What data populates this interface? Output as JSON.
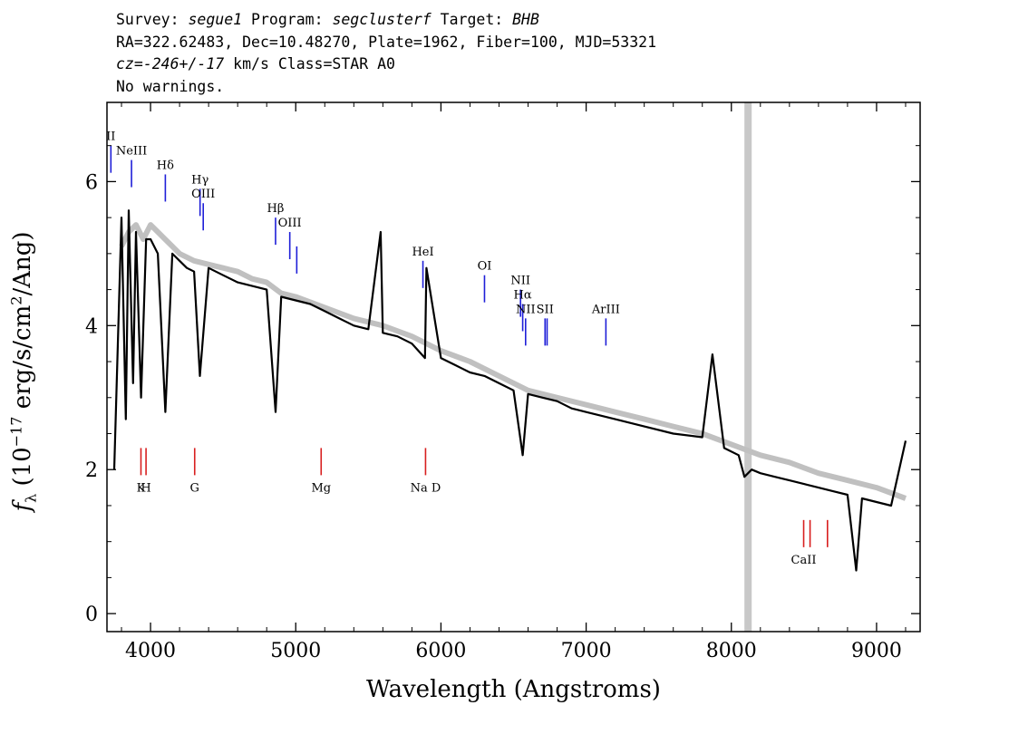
{
  "header": {
    "survey_label": "Survey: ",
    "survey": "segue1",
    "program_label": " Program: ",
    "program": "segclusterf",
    "target_label": " Target: ",
    "target": "BHB",
    "line2": "RA=322.62483, Dec=10.48270, Plate=1962, Fiber=100, MJD=53321",
    "cz_label": "cz=",
    "cz": "-246+/-17",
    "cz_rest": " km/s Class=STAR A0",
    "line4": "No warnings."
  },
  "chart_data": {
    "type": "line",
    "xlabel": "Wavelength (Angstroms)",
    "ylabel": "f_λ (10^-17 erg/s/cm^2/Ang)",
    "xlim": [
      3700,
      9300
    ],
    "ylim": [
      -0.25,
      7.1
    ],
    "xticks": [
      4000,
      5000,
      6000,
      7000,
      8000,
      9000
    ],
    "yticks": [
      0,
      2,
      4,
      6
    ],
    "masked_region": [
      8090,
      8140
    ],
    "series": [
      {
        "role": "flux",
        "color": "#c0c0c0",
        "x": [
          3800,
          3850,
          3900,
          3950,
          4000,
          4050,
          4100,
          4150,
          4200,
          4300,
          4400,
          4500,
          4600,
          4700,
          4800,
          4900,
          5000,
          5200,
          5400,
          5600,
          5800,
          6000,
          6200,
          6400,
          6600,
          6800,
          7000,
          7200,
          7400,
          7600,
          7800,
          8000,
          8200,
          8400,
          8600,
          8800,
          9000,
          9200
        ],
        "y": [
          5.1,
          5.3,
          5.4,
          5.2,
          5.4,
          5.3,
          5.2,
          5.1,
          5.0,
          4.9,
          4.85,
          4.8,
          4.75,
          4.65,
          4.6,
          4.45,
          4.4,
          4.25,
          4.1,
          4.0,
          3.85,
          3.65,
          3.5,
          3.3,
          3.1,
          3.0,
          2.9,
          2.8,
          2.7,
          2.6,
          2.5,
          2.35,
          2.2,
          2.1,
          1.95,
          1.85,
          1.75,
          1.6
        ]
      },
      {
        "role": "model",
        "color": "#000000",
        "x": [
          3750,
          3800,
          3830,
          3850,
          3880,
          3900,
          3935,
          3970,
          4000,
          4050,
          4102,
          4150,
          4200,
          4250,
          4300,
          4340,
          4400,
          4500,
          4600,
          4700,
          4800,
          4861,
          4900,
          5000,
          5100,
          5200,
          5300,
          5400,
          5500,
          5585,
          5600,
          5700,
          5800,
          5890,
          5900,
          6000,
          6100,
          6200,
          6300,
          6400,
          6500,
          6563,
          6600,
          6700,
          6800,
          6900,
          7000,
          7200,
          7400,
          7600,
          7800,
          7870,
          7950,
          8050,
          8090,
          8140,
          8200,
          8300,
          8400,
          8500,
          8600,
          8700,
          8800,
          8860,
          8900,
          9000,
          9100,
          9200
        ],
        "y": [
          2.0,
          5.5,
          2.7,
          5.6,
          3.2,
          5.3,
          3.0,
          5.2,
          5.2,
          5.0,
          2.8,
          5.0,
          4.9,
          4.8,
          4.75,
          3.3,
          4.8,
          4.7,
          4.6,
          4.55,
          4.5,
          2.8,
          4.4,
          4.35,
          4.3,
          4.2,
          4.1,
          4.0,
          3.95,
          5.3,
          3.9,
          3.85,
          3.75,
          3.55,
          4.8,
          3.55,
          3.45,
          3.35,
          3.3,
          3.2,
          3.1,
          2.2,
          3.05,
          3.0,
          2.95,
          2.85,
          2.8,
          2.7,
          2.6,
          2.5,
          2.45,
          3.6,
          2.3,
          2.2,
          1.9,
          2.0,
          1.95,
          1.9,
          1.85,
          1.8,
          1.75,
          1.7,
          1.65,
          0.6,
          1.6,
          1.55,
          1.5,
          2.4
        ]
      }
    ],
    "emission_lines": [
      {
        "label": "II",
        "x": 3727
      },
      {
        "label": "NeIII",
        "x": 3869
      },
      {
        "label": "Hδ",
        "x": 4102
      },
      {
        "label": "Hγ",
        "x": 4341
      },
      {
        "label": "OIII",
        "x": 4363
      },
      {
        "label": "Hβ",
        "x": 4861
      },
      {
        "label": "OIII",
        "x": 4959
      },
      {
        "label": "",
        "x": 5007
      },
      {
        "label": "HeI",
        "x": 5876
      },
      {
        "label": "OI",
        "x": 6300
      },
      {
        "label": "NII",
        "x": 6548
      },
      {
        "label": "Hα",
        "x": 6563
      },
      {
        "label": "NII",
        "x": 6583
      },
      {
        "label": "SII",
        "x": 6717
      },
      {
        "label": "",
        "x": 6731
      },
      {
        "label": "ArIII",
        "x": 7136
      }
    ],
    "absorption_lines": [
      {
        "label": "K",
        "x": 3934
      },
      {
        "label": "H",
        "x": 3969
      },
      {
        "label": "G",
        "x": 4304
      },
      {
        "label": "Mg",
        "x": 5175
      },
      {
        "label": "Na D",
        "x": 5894
      },
      {
        "label": "CaII",
        "x": 8498
      },
      {
        "label": "",
        "x": 8542
      },
      {
        "label": "",
        "x": 8662
      }
    ]
  }
}
